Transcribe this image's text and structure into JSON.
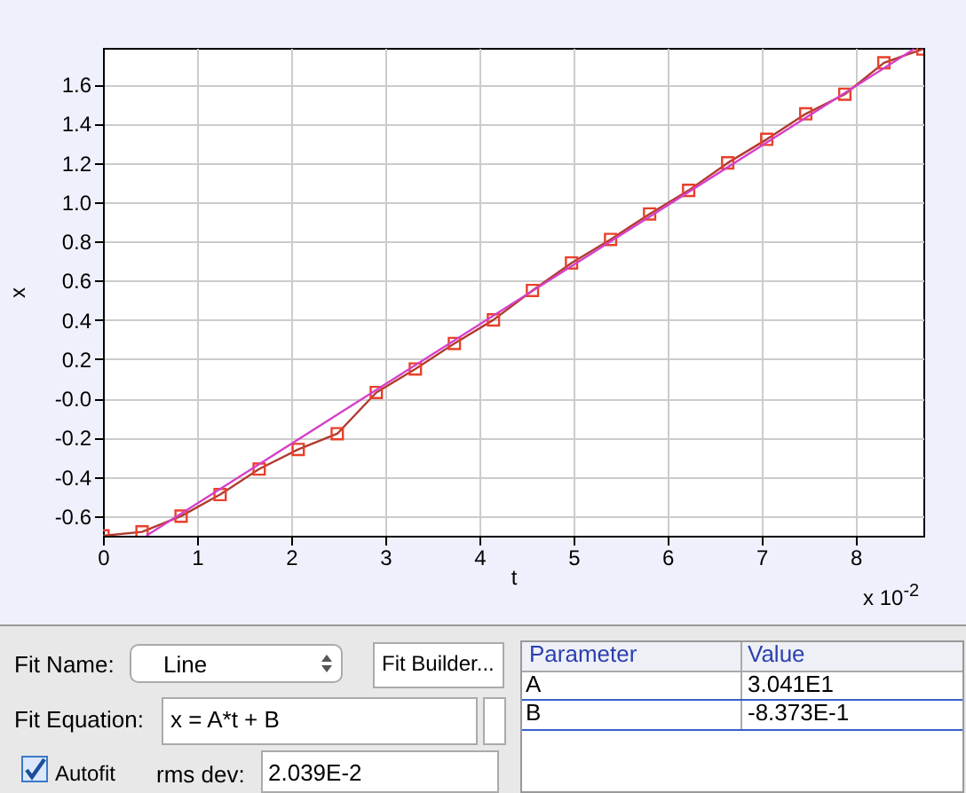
{
  "chart_data": {
    "type": "line",
    "xlabel": "t",
    "ylabel": "x",
    "xlim": [
      0,
      8.72
    ],
    "ylim": [
      -0.7,
      1.786
    ],
    "xticks": [
      0,
      1,
      2,
      3,
      4,
      5,
      6,
      7,
      8
    ],
    "yticks": [
      {
        "value": -0.6,
        "label": "-0.6"
      },
      {
        "value": -0.4,
        "label": "-0.4"
      },
      {
        "value": -0.2,
        "label": "-0.2"
      },
      {
        "value": 0,
        "label": "-0.0"
      },
      {
        "value": 0.2,
        "label": "0.2"
      },
      {
        "value": 0.4,
        "label": "0.4"
      },
      {
        "value": 0.6,
        "label": "0.6"
      },
      {
        "value": 0.8,
        "label": "0.8"
      },
      {
        "value": 1,
        "label": "1.0"
      },
      {
        "value": 1.2,
        "label": "1.2"
      },
      {
        "value": 1.4,
        "label": "1.4"
      },
      {
        "value": 1.6,
        "label": "1.6"
      }
    ],
    "grid": true,
    "series": [
      {
        "color": "#b03a2e",
        "marker": "square",
        "x": [
          0,
          0.415,
          0.83,
          1.245,
          1.66,
          2.075,
          2.49,
          2.905,
          3.32,
          3.735,
          4.15,
          4.565,
          4.98,
          5.395,
          5.81,
          6.225,
          6.64,
          7.055,
          7.47,
          7.885,
          8.3,
          8.715
        ],
        "values": [
          -0.7,
          -0.68,
          -0.6,
          -0.49,
          -0.36,
          -0.26,
          -0.18,
          0.03,
          0.15,
          0.28,
          0.4,
          0.55,
          0.69,
          0.81,
          0.94,
          1.06,
          1.2,
          1.32,
          1.45,
          1.55,
          1.71,
          1.78
        ]
      },
      {
        "type": "line",
        "color": "#d63fc8",
        "marker": "none",
        "x": [
          0.46,
          8.62
        ],
        "values": [
          -0.7,
          1.78
        ]
      }
    ],
    "annotations": [
      "x 10$^{-2}$",
      "Fit Name:",
      "Line",
      "Fit Builder...",
      "Fit Equation:",
      "x = A*t + B",
      "Autofit",
      "rms dev:",
      "2.039E-2",
      "Parameter",
      "Value",
      "A",
      "3.041E1",
      "B",
      "-8.373E-1"
    ]
  }
}
